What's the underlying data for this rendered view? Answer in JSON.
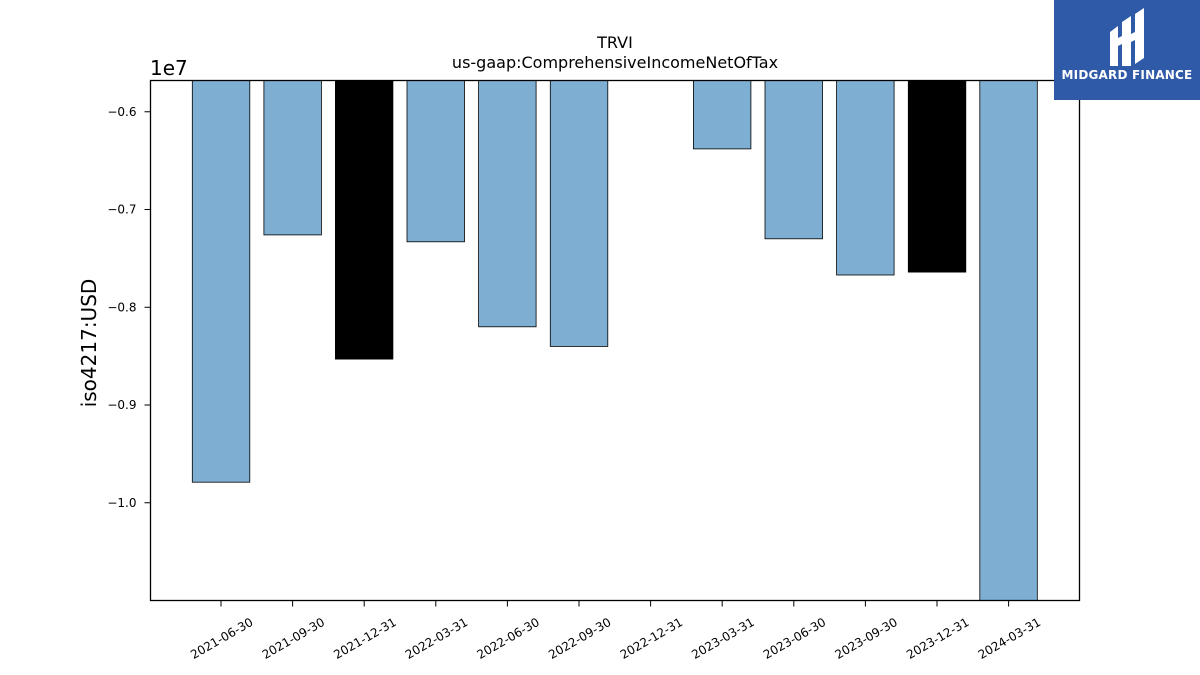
{
  "chart_data": {
    "type": "bar",
    "title": "TRVI",
    "subtitle": "us-gaap:ComprehensiveIncomeNetOfTax",
    "ylabel": "iso4217:USD",
    "xlabel": "",
    "offset_label": "1e7",
    "ylim": [
      -11.0,
      -5.68
    ],
    "yticks": [
      -0.6,
      -0.7,
      -0.8,
      -0.9,
      -1.0
    ],
    "ytick_labels": [
      "−0.6",
      "−0.7",
      "−0.8",
      "−0.9",
      "−1.0"
    ],
    "categories": [
      "2021-06-30",
      "2021-09-30",
      "2021-12-31",
      "2022-03-31",
      "2022-06-30",
      "2022-09-30",
      "2022-12-31",
      "2023-03-31",
      "2023-06-30",
      "2023-09-30",
      "2023-12-31",
      "2024-03-31"
    ],
    "values_1e6": [
      -9.79,
      -7.26,
      -8.53,
      -7.33,
      -8.2,
      -8.4,
      null,
      -6.38,
      -7.3,
      -7.67,
      -7.64,
      -11.0
    ],
    "bar_colors": [
      "#7eafd3",
      "#7eafd3",
      "#000000",
      "#7eafd3",
      "#7eafd3",
      "#7eafd3",
      null,
      "#7eafd3",
      "#7eafd3",
      "#7eafd3",
      "#000000",
      "#7eafd3"
    ],
    "grid": false,
    "legend": "none"
  },
  "logo": {
    "text": "MIDGARD FINANCE",
    "background": "#2e5aa8"
  }
}
